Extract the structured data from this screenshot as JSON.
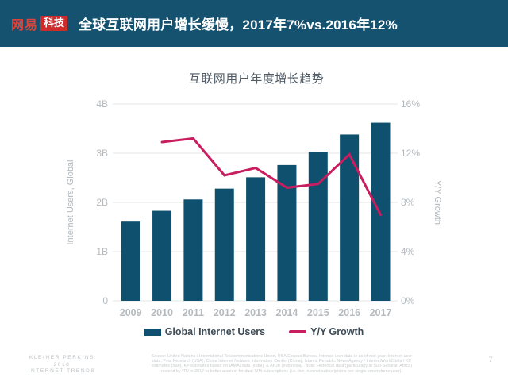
{
  "header": {
    "logo_brand": "网易",
    "logo_suffix": "科技",
    "title": "全球互联网用户增长缓慢，2017年7%vs.2016年12%"
  },
  "chart_data": {
    "type": "bar",
    "title": "互联网用户年度增长趋势",
    "categories": [
      "2009",
      "2010",
      "2011",
      "2012",
      "2013",
      "2014",
      "2015",
      "2016",
      "2017"
    ],
    "series": [
      {
        "name": "Global Internet Users",
        "type": "bar",
        "axis": "left",
        "unit": "B",
        "color": "#0F506E",
        "values": [
          1.61,
          1.83,
          2.06,
          2.28,
          2.51,
          2.76,
          3.03,
          3.38,
          3.62
        ]
      },
      {
        "name": "Y/Y Growth",
        "type": "line",
        "axis": "right",
        "unit": "%",
        "color": "#C81D5F",
        "values": [
          null,
          12.9,
          13.2,
          10.2,
          10.8,
          9.2,
          9.5,
          11.9,
          7.0
        ]
      }
    ],
    "left_axis": {
      "label": "Internet Users, Global",
      "min": 0,
      "max": 4,
      "ticks": [
        "0",
        "1B",
        "2B",
        "3B",
        "4B"
      ]
    },
    "right_axis": {
      "label": "Y/Y Growth",
      "min": 0,
      "max": 16,
      "ticks": [
        "0%",
        "4%",
        "8%",
        "12%",
        "16%"
      ]
    },
    "grid": true,
    "legend_position": "bottom"
  },
  "footer": {
    "brand_lines": [
      "KLEINER PERKINS",
      "2018",
      "INTERNET TRENDS"
    ],
    "source_lines": [
      "Source: United Nations / International Telecommunications Union, USA Census Bureau. Internet user data is as of mid-year. Internet user",
      "data: Pew Research (USA), China Internet Network Information Center (China), Islamic Republic News Agency / InternetWorldStats / KP",
      "estimates (Iran). KP estimates based on IAMAI data (India), & APJII (Indonesia). Note: Historical data (particularly in Sub-Saharan Africa)",
      "revised by ITU in 2017 to better account for dual-SIM subscriptions (i.e. live Internet subscriptions per single smartphone user)."
    ],
    "page_number": "7"
  },
  "colors": {
    "header_bg": "#155270",
    "logo_red": "#CE2B2B",
    "bar": "#0F506E",
    "line": "#C81D5F",
    "grid": "#E4E6E7",
    "tick_text": "#B5BABE",
    "axis_title_text": "#B2B7BB",
    "chart_title_text": "#4E5B66",
    "legend_text": "#3E4C57"
  }
}
